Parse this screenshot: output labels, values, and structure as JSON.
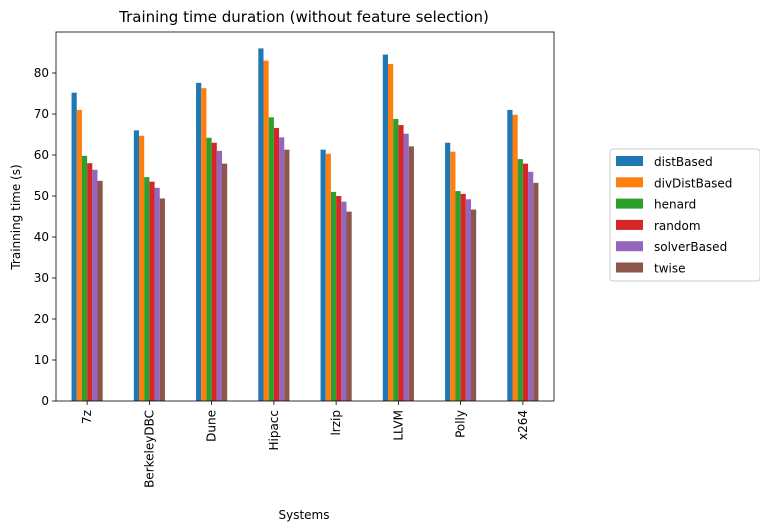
{
  "chart_data": {
    "type": "bar",
    "title": "Training time duration (without feature selection)",
    "xlabel": "Systems",
    "ylabel": "Trainning time (s)",
    "ylim": [
      0,
      90
    ],
    "yticks": [
      0,
      10,
      20,
      30,
      40,
      50,
      60,
      70,
      80
    ],
    "categories": [
      "7z",
      "BerkeleyDBC",
      "Dune",
      "Hipacc",
      "lrzip",
      "LLVM",
      "Polly",
      "x264"
    ],
    "legend_position": "right",
    "series": [
      {
        "name": "distBased",
        "color": "#1f77b4",
        "values": [
          75.2,
          66.0,
          77.6,
          86.0,
          61.3,
          84.5,
          63.0,
          71.0
        ]
      },
      {
        "name": "divDistBased",
        "color": "#ff7f0e",
        "values": [
          71.0,
          64.7,
          76.3,
          83.0,
          60.3,
          82.2,
          60.8,
          69.8
        ]
      },
      {
        "name": "henard",
        "color": "#2ca02c",
        "values": [
          59.8,
          54.6,
          64.2,
          69.2,
          51.0,
          68.8,
          51.2,
          59.0
        ]
      },
      {
        "name": "random",
        "color": "#d62728",
        "values": [
          58.0,
          53.5,
          63.0,
          66.6,
          50.0,
          67.3,
          50.5,
          57.9
        ]
      },
      {
        "name": "solverBased",
        "color": "#9467bd",
        "values": [
          56.4,
          52.0,
          61.0,
          64.3,
          48.6,
          65.2,
          49.2,
          55.9
        ]
      },
      {
        "name": "twise",
        "color": "#8c564b",
        "values": [
          53.7,
          49.4,
          57.9,
          61.3,
          46.2,
          62.1,
          46.7,
          53.2
        ]
      }
    ]
  }
}
